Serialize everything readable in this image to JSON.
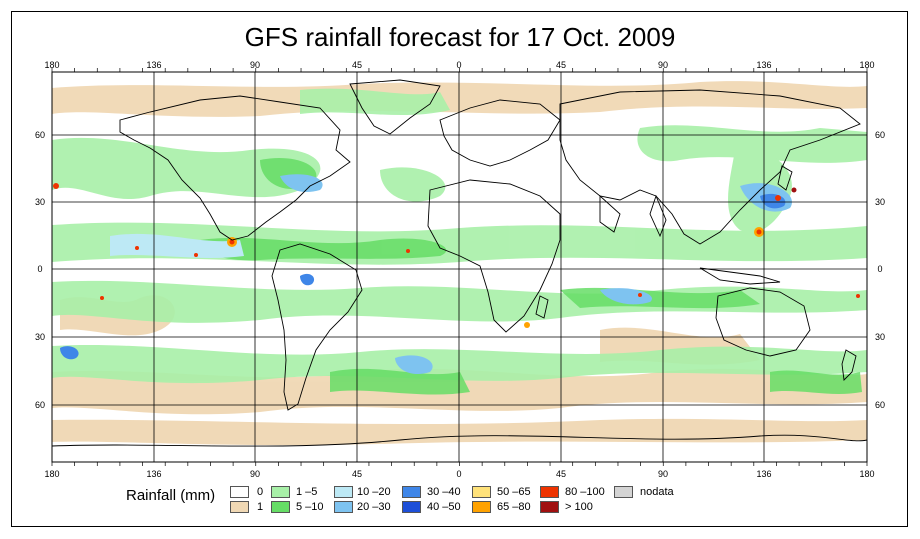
{
  "title": "GFS rainfall forecast for 17 Oct. 2009",
  "axes": {
    "lon_labels": [
      "180",
      "136",
      "90",
      "45",
      "0",
      "45",
      "90",
      "136",
      "180"
    ],
    "lat_labels": [
      "60",
      "30",
      "0",
      "30",
      "60"
    ]
  },
  "legend": {
    "title": "Rainfall (mm)",
    "items": [
      {
        "label": "0",
        "color": "#ffffff"
      },
      {
        "label": "1",
        "color": "#f0d8b4"
      },
      {
        "label": "1 –5",
        "color": "#a8f0a8"
      },
      {
        "label": "5 –10",
        "color": "#66dd66"
      },
      {
        "label": "10 –20",
        "color": "#bde9f5"
      },
      {
        "label": "20 –30",
        "color": "#7ec3f0"
      },
      {
        "label": "30 –40",
        "color": "#3f86e8"
      },
      {
        "label": "40 –50",
        "color": "#1d4fd8"
      },
      {
        "label": "50 –65",
        "color": "#ffe27a"
      },
      {
        "label": "65 –80",
        "color": "#ffa200"
      },
      {
        "label": "80 –100",
        "color": "#ee3300"
      },
      {
        "label": "> 100",
        "color": "#a01010"
      },
      {
        "label": "nodata",
        "color": "#d4d4d4"
      }
    ]
  },
  "colors": {
    "ocean": "#ffffff",
    "land_outline": "#000000",
    "grid": "#000000"
  }
}
